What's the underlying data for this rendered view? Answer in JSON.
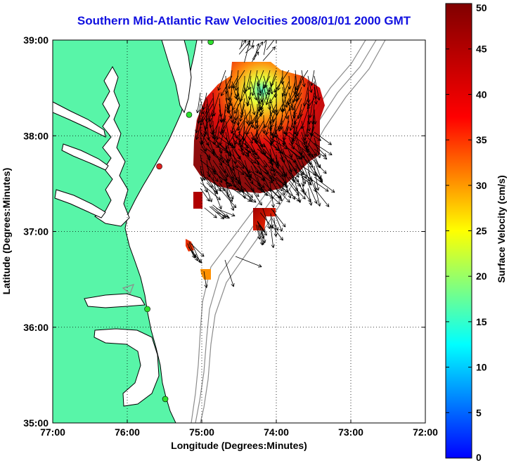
{
  "title": "Southern Mid-Atlantic Raw Velocities 2008/01/01 2000 GMT",
  "map": {
    "xlabel": "Longitude (Degrees:Minutes)",
    "ylabel": "Latitude (Degrees:Minutes)",
    "lon_range": [
      -77,
      -72
    ],
    "lat_range": [
      35,
      39
    ],
    "lon_ticks": [
      {
        "value": -77,
        "label": "77:00"
      },
      {
        "value": -76,
        "label": "76:00"
      },
      {
        "value": -75,
        "label": "75:00"
      },
      {
        "value": -74,
        "label": "74:00"
      },
      {
        "value": -73,
        "label": "73:00"
      },
      {
        "value": -72,
        "label": "72:00"
      }
    ],
    "lat_ticks": [
      {
        "value": 35,
        "label": "35:00"
      },
      {
        "value": 36,
        "label": "36:00"
      },
      {
        "value": 37,
        "label": "37:00"
      },
      {
        "value": 38,
        "label": "38:00"
      },
      {
        "value": 39,
        "label": "39:00"
      }
    ],
    "grid": true,
    "colors": {
      "land": "#58f5a8",
      "water": "#ffffff",
      "coastline": "#000000",
      "bathymetry": "#8c8c8c",
      "station": "#2ee02e",
      "station_alt": "#e02020",
      "arrows": "#000000",
      "title": "#1010e0"
    },
    "stations": [
      {
        "lon": -74.88,
        "lat": 38.98,
        "color": "station"
      },
      {
        "lon": -75.17,
        "lat": 38.22,
        "color": "station"
      },
      {
        "lon": -75.57,
        "lat": 37.68,
        "color": "station_alt"
      },
      {
        "lon": -75.73,
        "lat": 36.19,
        "color": "station"
      },
      {
        "lon": -75.49,
        "lat": 35.25,
        "color": "station"
      }
    ]
  },
  "colorbar": {
    "label": "Surface Velocity (cm/s)",
    "range": [
      0,
      50
    ],
    "ticks": [
      {
        "value": 0,
        "label": "0"
      },
      {
        "value": 5,
        "label": "5"
      },
      {
        "value": 10,
        "label": "10"
      },
      {
        "value": 15,
        "label": "15"
      },
      {
        "value": 20,
        "label": "20"
      },
      {
        "value": 25,
        "label": "25"
      },
      {
        "value": 30,
        "label": "30"
      },
      {
        "value": 35,
        "label": "35"
      },
      {
        "value": 40,
        "label": "40"
      },
      {
        "value": 45,
        "label": "45"
      },
      {
        "value": 50,
        "label": "50"
      }
    ],
    "colormap": "jet"
  },
  "velocity_field": {
    "regions": [
      {
        "name": "main",
        "speed": 42
      },
      {
        "name": "north-lobe",
        "speed": 22
      },
      {
        "name": "southeast-patch",
        "speed": 46
      },
      {
        "name": "west-patch",
        "speed": 45
      },
      {
        "name": "south-patch-1",
        "speed": 40
      },
      {
        "name": "south-patch-2",
        "speed": 34
      }
    ]
  }
}
